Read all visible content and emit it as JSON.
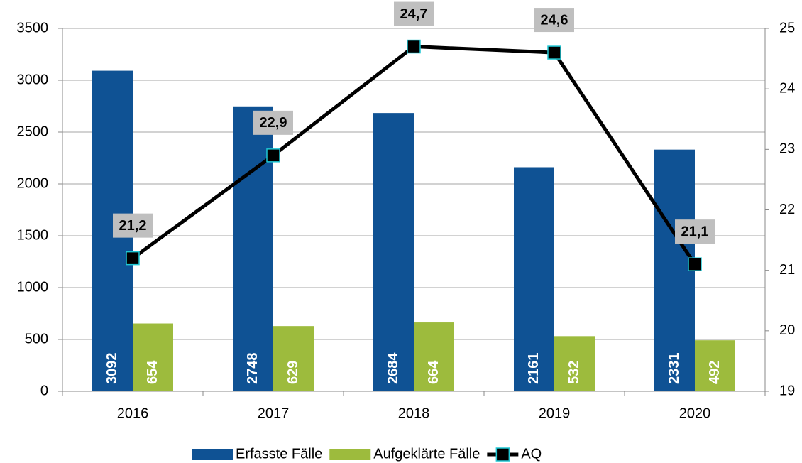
{
  "chart_data": {
    "type": "bar",
    "categories": [
      "2016",
      "2017",
      "2018",
      "2019",
      "2020"
    ],
    "series": [
      {
        "name": "Erfasste Fälle",
        "color": "#0f5294",
        "values": [
          3092,
          2748,
          2684,
          2161,
          2331
        ]
      },
      {
        "name": "Aufgeklärte Fälle",
        "color": "#9dbb3d",
        "values": [
          654,
          629,
          664,
          532,
          492
        ]
      },
      {
        "name": "AQ",
        "type": "line",
        "axis": "y2",
        "color": "#000000",
        "marker_edge": "#1fc7d4",
        "values": [
          21.2,
          22.9,
          24.7,
          24.6,
          21.1
        ],
        "value_labels": [
          "21,2",
          "22,9",
          "24,7",
          "24,6",
          "21,1"
        ]
      }
    ],
    "ylim": [
      0,
      3500
    ],
    "yticks": [
      0,
      500,
      1000,
      1500,
      2000,
      2500,
      3000,
      3500
    ],
    "y2lim": [
      19,
      25
    ],
    "y2ticks": [
      19,
      20,
      21,
      22,
      23,
      24,
      25
    ],
    "grid": true,
    "legend": "bottom"
  }
}
